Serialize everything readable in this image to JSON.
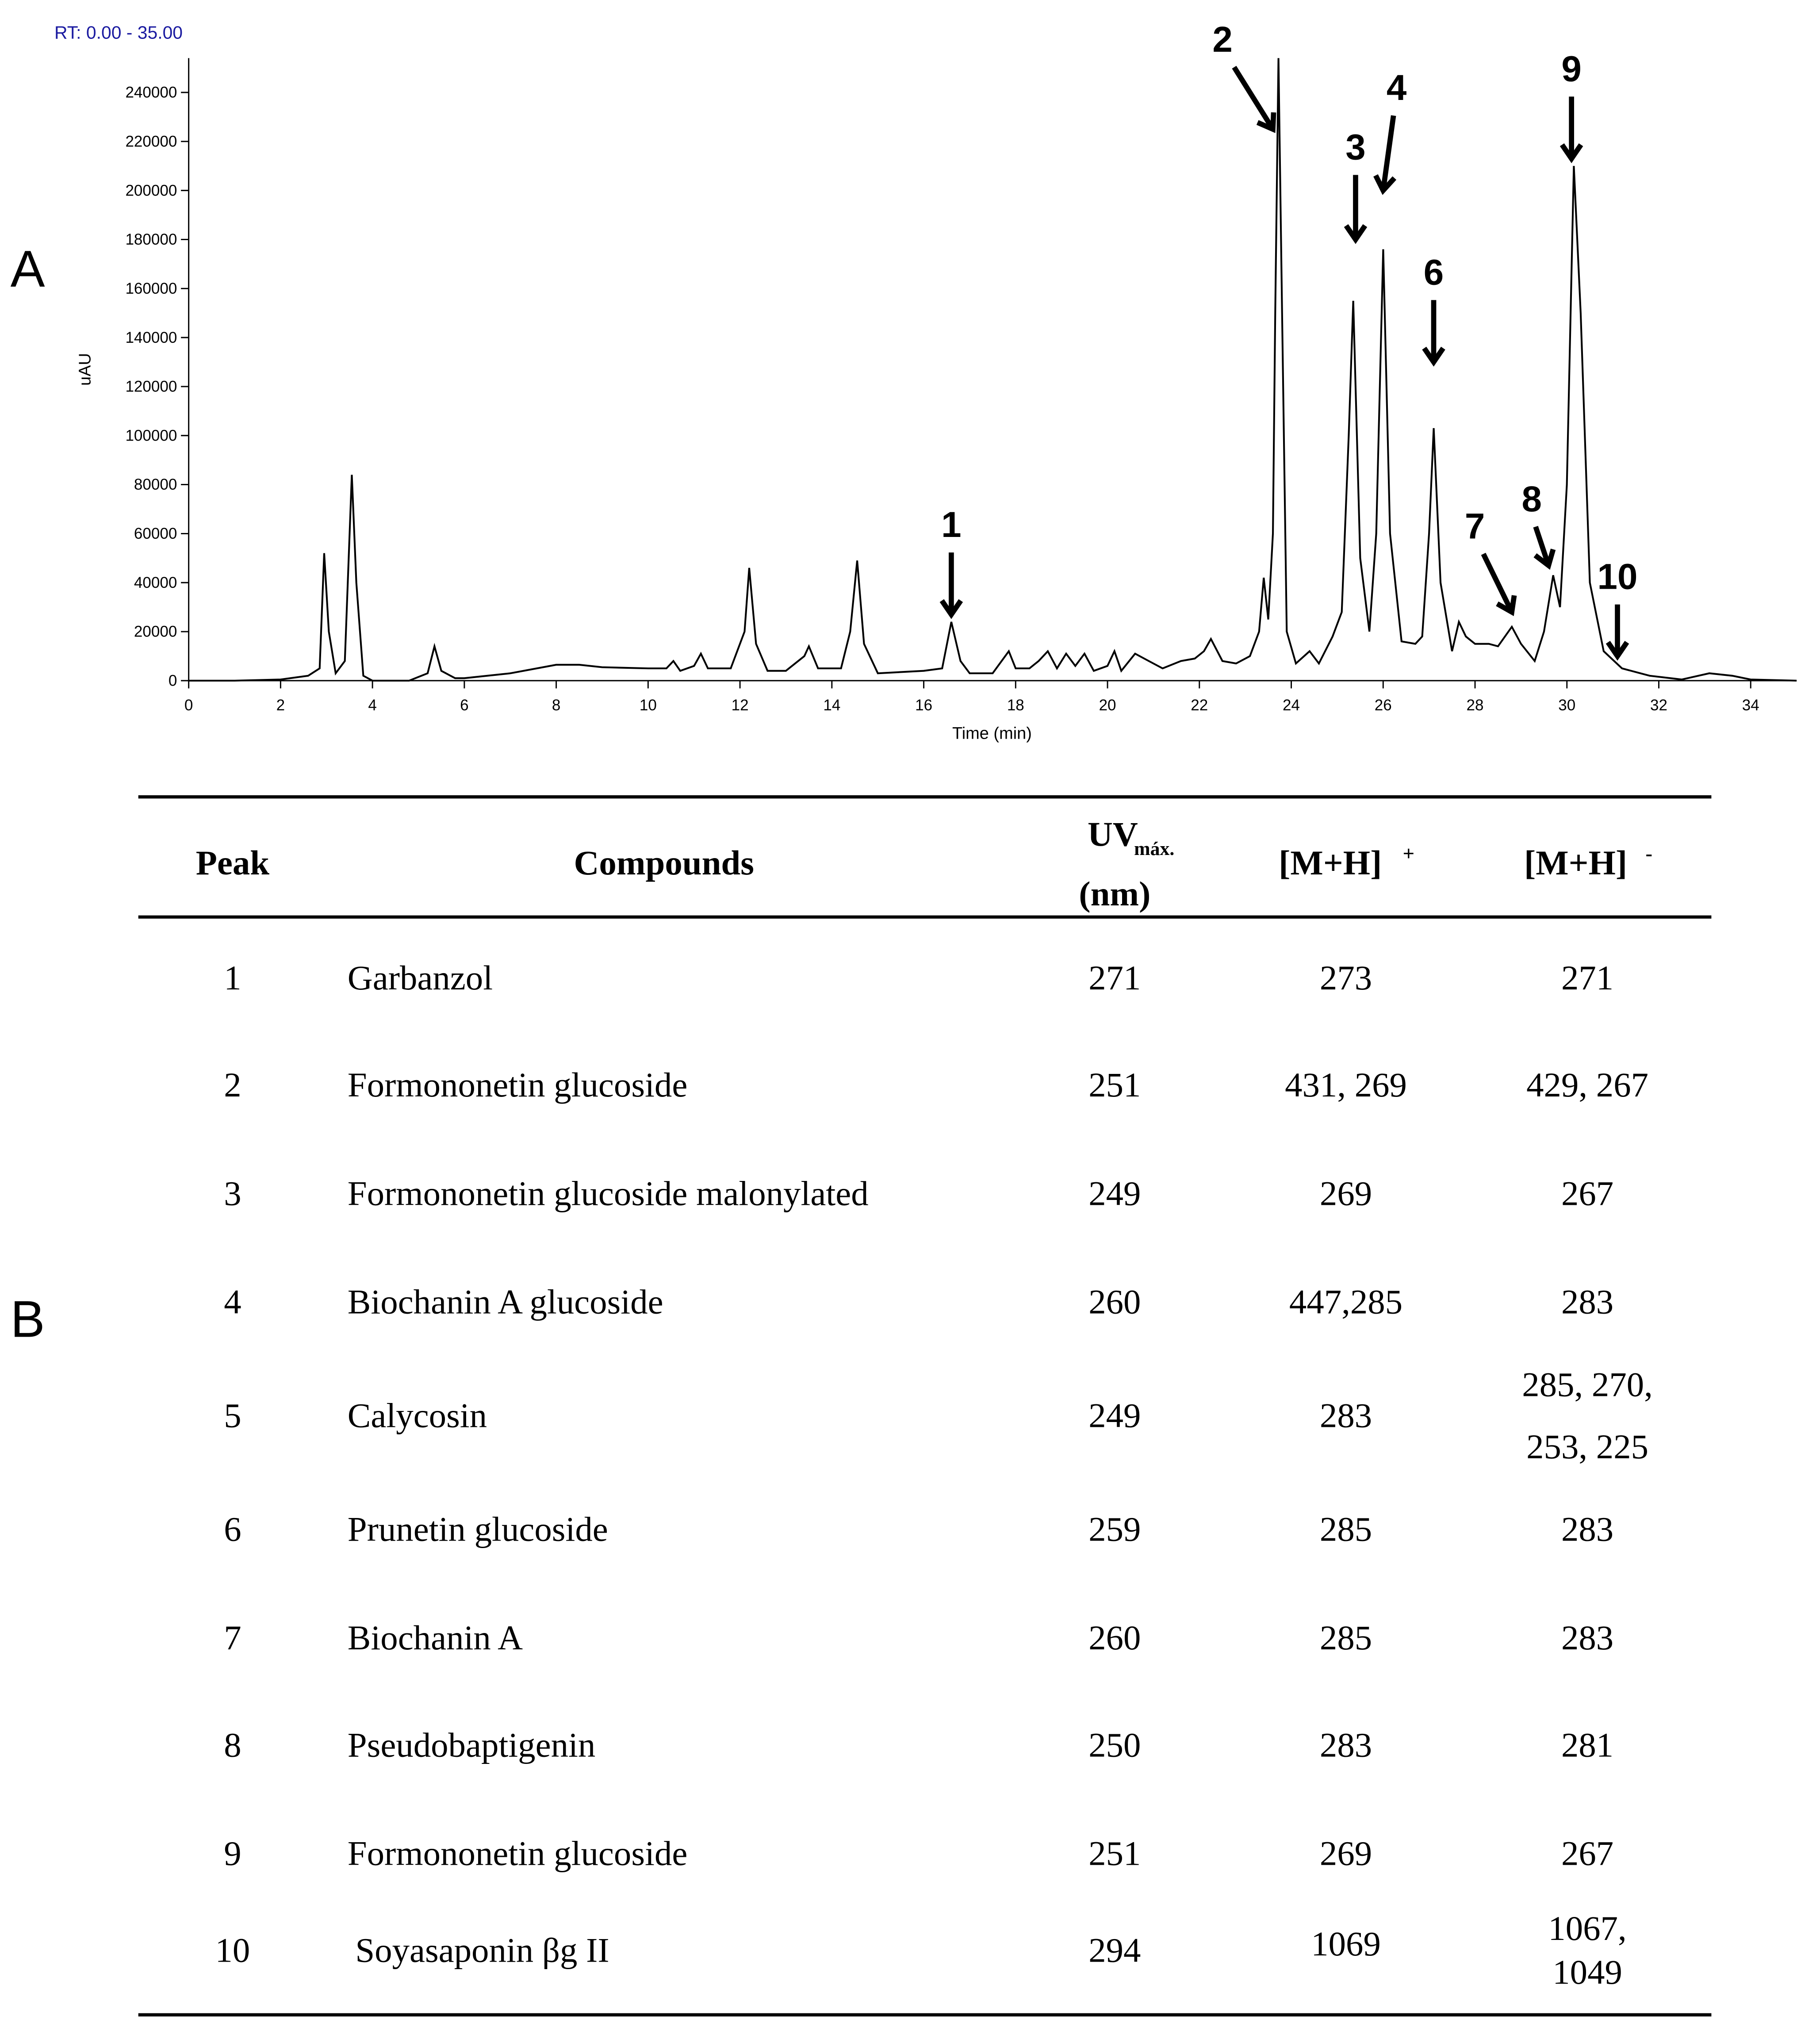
{
  "panel_a": "A",
  "chart_data": {
    "type": "line",
    "range_label": "RT: 0.00 - 35.00",
    "x_label": "Time (min)",
    "y_label": "uAU",
    "color": "#000000",
    "x": [
      0,
      1,
      2,
      2.6,
      2.85,
      2.95,
      3.05,
      3.2,
      3.4,
      3.55,
      3.65,
      3.8,
      4,
      4.8,
      5.2,
      5.35,
      5.5,
      5.8,
      6,
      7,
      8,
      8.5,
      9,
      10,
      10.4,
      10.55,
      10.7,
      11,
      11.15,
      11.3,
      11.8,
      12.1,
      12.2,
      12.35,
      12.6,
      13,
      13.4,
      13.5,
      13.7,
      14.2,
      14.4,
      14.55,
      14.7,
      15,
      16,
      16.4,
      16.6,
      16.8,
      17,
      17.5,
      17.85,
      18,
      18.3,
      18.5,
      18.7,
      18.9,
      19.1,
      19.3,
      19.5,
      19.7,
      20,
      20.15,
      20.3,
      20.6,
      20.9,
      21.2,
      21.6,
      21.9,
      22.1,
      22.25,
      22.5,
      22.8,
      23.1,
      23.3,
      23.4,
      23.5,
      23.6,
      23.65,
      23.72,
      23.8,
      23.9,
      24.1,
      24.4,
      24.6,
      24.9,
      25.1,
      25.25,
      25.35,
      25.5,
      25.7,
      25.85,
      26,
      26.15,
      26.4,
      26.7,
      26.85,
      27,
      27.1,
      27.25,
      27.5,
      27.65,
      27.8,
      28,
      28.3,
      28.5,
      28.8,
      29,
      29.3,
      29.5,
      29.7,
      29.85,
      30,
      30.15,
      30.3,
      30.5,
      30.8,
      31.2,
      31.8,
      32.5,
      33.1,
      33.6,
      34,
      35
    ],
    "values": [
      0,
      0,
      500,
      2000,
      5000,
      52000,
      20000,
      3000,
      8000,
      84000,
      40000,
      2000,
      0,
      0,
      3000,
      14000,
      4000,
      1000,
      1000,
      3000,
      6500,
      6500,
      5500,
      5000,
      5000,
      8000,
      4000,
      6000,
      11000,
      5000,
      5000,
      20000,
      46000,
      15000,
      4000,
      4000,
      10000,
      14000,
      5000,
      5000,
      20000,
      49000,
      15000,
      3000,
      4000,
      5000,
      24000,
      8000,
      3000,
      3000,
      12000,
      5000,
      5000,
      8000,
      12000,
      5000,
      11000,
      6000,
      11000,
      4000,
      6000,
      12000,
      4000,
      11000,
      8000,
      5000,
      8000,
      9000,
      12000,
      17000,
      8000,
      7000,
      10000,
      20000,
      42000,
      25000,
      60000,
      150000,
      254000,
      150000,
      20000,
      7000,
      12000,
      7000,
      18000,
      28000,
      100000,
      155000,
      50000,
      20000,
      60000,
      176000,
      60000,
      16000,
      15000,
      18000,
      60000,
      103000,
      40000,
      12000,
      24000,
      18000,
      15000,
      15000,
      14000,
      22000,
      15000,
      8000,
      20000,
      43000,
      30000,
      80000,
      210000,
      150000,
      40000,
      12000,
      5000,
      2000,
      500,
      3000,
      2000,
      500,
      0
    ],
    "xlim": [
      0,
      35
    ],
    "ylim": [
      0,
      254000
    ],
    "xticks": [
      0,
      2,
      4,
      6,
      8,
      10,
      12,
      14,
      16,
      18,
      20,
      22,
      24,
      26,
      28,
      30,
      32,
      34
    ],
    "yticks": [
      0,
      20000,
      40000,
      60000,
      80000,
      100000,
      120000,
      140000,
      160000,
      180000,
      200000,
      220000,
      240000
    ],
    "annotations": [
      {
        "text": "1",
        "x": 16.6,
        "y": 27000
      },
      {
        "text": "2",
        "x": 23.6,
        "y": 225000
      },
      {
        "text": "3",
        "x": 25.4,
        "y": 180000
      },
      {
        "text": "4",
        "x": 26.0,
        "y": 200000
      },
      {
        "text": "6",
        "x": 27.1,
        "y": 130000
      },
      {
        "text": "7",
        "x": 28.8,
        "y": 28000
      },
      {
        "text": "8",
        "x": 29.6,
        "y": 47000
      },
      {
        "text": "9",
        "x": 30.1,
        "y": 213000
      },
      {
        "text": "10",
        "x": 31.1,
        "y": 10000
      }
    ]
  },
  "panel_b": "B",
  "table": {
    "header": {
      "peak": "Peak",
      "compounds": "Compounds",
      "uv": "UV",
      "uv_sub": "máx.",
      "uv_unit": "(nm)",
      "pos": "[M+H]",
      "pos_sup": "+",
      "neg": "[M+H]",
      "neg_sup": "-"
    },
    "rows": [
      [
        "1",
        "Garbanzol",
        "271",
        "273",
        "271"
      ],
      [
        "2",
        "Formononetin glucoside",
        "251",
        "431, 269",
        "429, 267"
      ],
      [
        "3",
        "Formononetin glucoside malonylated",
        "249",
        "269",
        "267"
      ],
      [
        "4",
        "Biochanin A glucoside",
        "260",
        "447,285",
        "283"
      ],
      [
        "5",
        "Calycosin",
        "249",
        "283",
        [
          "285, 270,",
          "253, 225"
        ]
      ],
      [
        "6",
        "Prunetin glucoside",
        "259",
        "285",
        "283"
      ],
      [
        "7",
        "Biochanin A",
        "260",
        "285",
        "283"
      ],
      [
        "8",
        "Pseudobaptigenin",
        "250",
        "283",
        "281"
      ],
      [
        "9",
        "Formononetin glucoside",
        "251",
        "269",
        "267"
      ],
      [
        "10",
        "Soyasaponin βg II",
        "294",
        "1069",
        [
          "1067,",
          "1049"
        ]
      ]
    ]
  }
}
